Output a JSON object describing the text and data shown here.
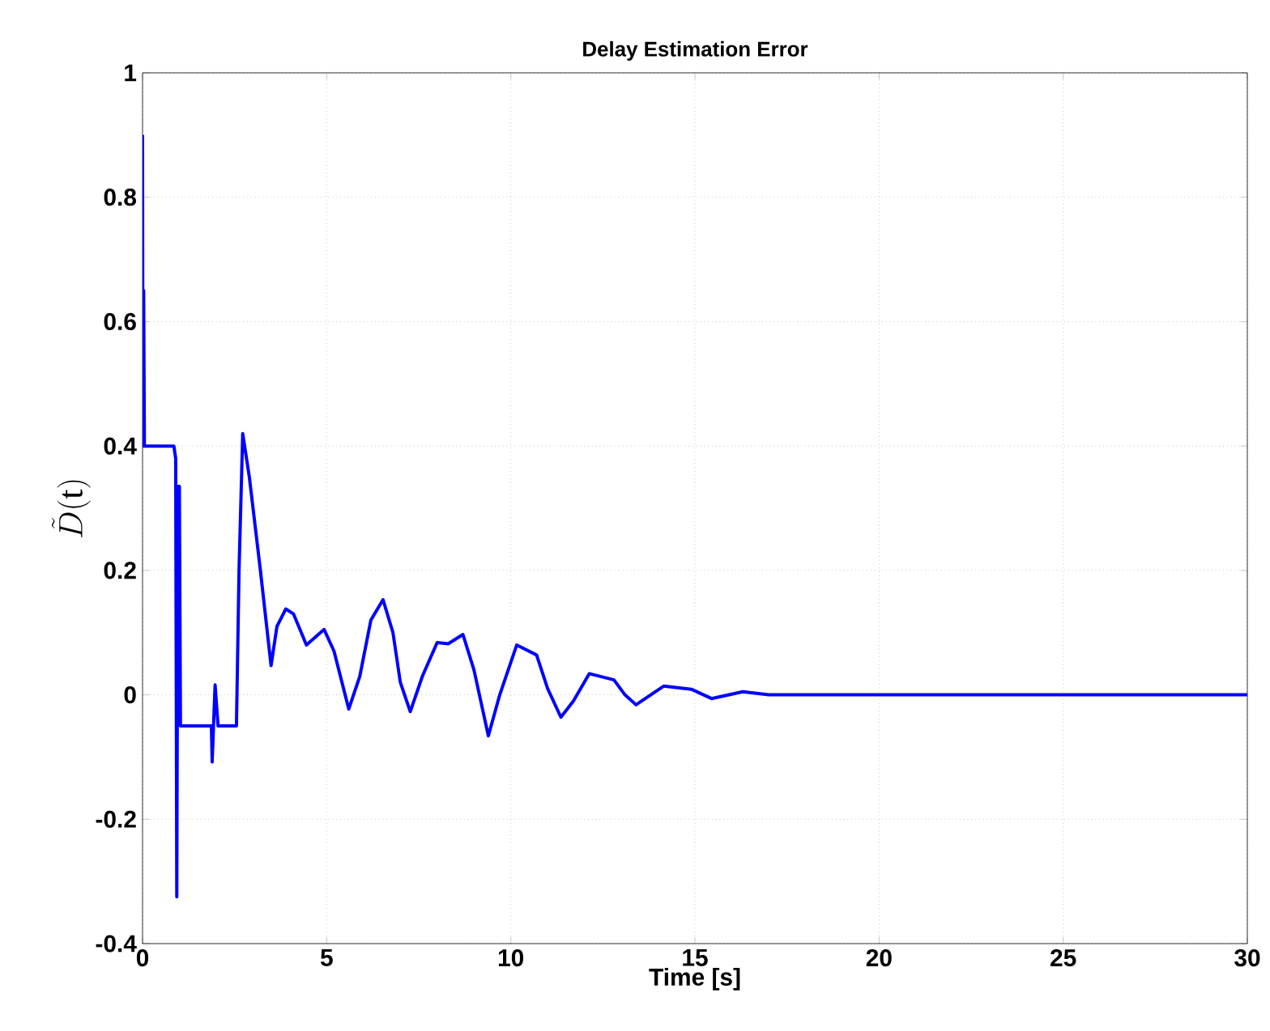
{
  "chart_data": {
    "type": "line",
    "title": "Delay Estimation Error",
    "xlabel": "Time [s]",
    "ylabel": "\\tilde{D}(\\mathrm{t})",
    "xlim": [
      0,
      30
    ],
    "ylim": [
      -0.4,
      1
    ],
    "xticks": [
      0,
      5,
      10,
      15,
      20,
      25,
      30
    ],
    "yticks": [
      -0.4,
      -0.2,
      0,
      0.2,
      0.4,
      0.6,
      0.8,
      1
    ],
    "grid": true,
    "line_style": "solid",
    "marker": "none",
    "series": [
      {
        "color": "#0000ff",
        "x": [
          0,
          0.01,
          0.03,
          0.05,
          0.85,
          0.9,
          0.93,
          0.96,
          1.0,
          1.03,
          1.09,
          1.87,
          1.89,
          1.97,
          2.05,
          2.1,
          2.55,
          2.62,
          2.72,
          2.9,
          3.2,
          3.49,
          3.65,
          3.89,
          4.1,
          4.45,
          4.93,
          5.2,
          5.6,
          5.9,
          6.2,
          6.53,
          6.8,
          7.0,
          7.27,
          7.6,
          8.0,
          8.3,
          8.7,
          9.0,
          9.39,
          9.7,
          10.16,
          10.7,
          11.0,
          11.36,
          11.7,
          12.13,
          12.8,
          13.1,
          13.4,
          13.8,
          14.15,
          14.9,
          15.45,
          16.3,
          17,
          18,
          20,
          25,
          30
        ],
        "values": [
          0.9,
          0.4,
          0.65,
          0.4,
          0.4,
          0.38,
          -0.325,
          0.335,
          0.335,
          -0.05,
          -0.05,
          -0.05,
          -0.108,
          0.016,
          -0.05,
          -0.05,
          -0.05,
          0.2,
          0.42,
          0.35,
          0.2,
          0.047,
          0.11,
          0.138,
          0.13,
          0.08,
          0.105,
          0.07,
          -0.023,
          0.03,
          0.12,
          0.153,
          0.1,
          0.02,
          -0.027,
          0.03,
          0.084,
          0.082,
          0.097,
          0.04,
          -0.066,
          0.0,
          0.08,
          0.064,
          0.01,
          -0.036,
          -0.01,
          0.034,
          0.024,
          0.0,
          -0.016,
          0.0,
          0.014,
          0.009,
          -0.006,
          0.005,
          0.0,
          0.0,
          0.0,
          0.0,
          0.0
        ]
      }
    ]
  }
}
